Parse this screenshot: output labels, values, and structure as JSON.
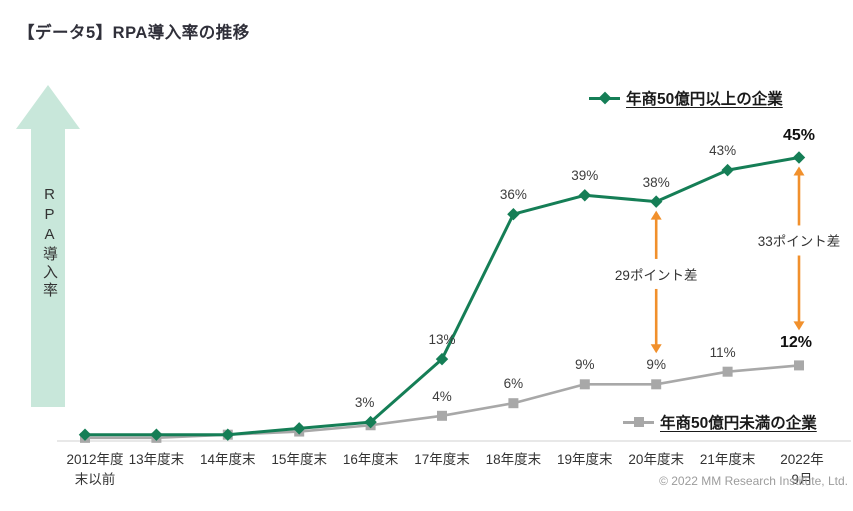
{
  "page": {
    "title": "【データ5】RPA導入率の推移",
    "copyright": "© 2022 MM Research Institute, Ltd."
  },
  "chart_data": {
    "type": "line",
    "title": "【データ5】RPA導入率の推移",
    "ylabel": "RPA導入率",
    "ylim": [
      0,
      47
    ],
    "grid": false,
    "categories": [
      "2012年度\n末以前",
      "13年度末",
      "14年度末",
      "15年度末",
      "16年度末",
      "17年度末",
      "18年度末",
      "19年度末",
      "20年度末",
      "21年度末",
      "2022年9月"
    ],
    "series": [
      {
        "name": "年商50億円以上の企業",
        "marker": "diamond",
        "color": "#157E56",
        "legend_position": "top-right",
        "values": [
          1,
          1,
          1,
          2,
          3,
          13,
          36,
          39,
          38,
          43,
          45
        ],
        "labels": [
          "",
          "",
          "",
          "",
          "3%",
          "13%",
          "36%",
          "39%",
          "38%",
          "43%",
          "45%"
        ]
      },
      {
        "name": "年商50億円未満の企業",
        "marker": "square",
        "color": "#A8A8A8",
        "legend_position": "bottom-right",
        "values": [
          0.5,
          0.5,
          1,
          1.5,
          2.5,
          4,
          6,
          9,
          9,
          11,
          12
        ],
        "labels": [
          "",
          "",
          "",
          "",
          "",
          "4%",
          "6%",
          "9%",
          "9%",
          "11%",
          "12%"
        ]
      }
    ],
    "annotations": [
      {
        "text": "29ポイント差",
        "category": "20年度末",
        "category_index": 8
      },
      {
        "text": "33ポイント差",
        "category": "2022年9月",
        "category_index": 10
      }
    ],
    "annotation_color": "#F1902C",
    "y_axis_arrow_color": "#C8E7DA"
  }
}
